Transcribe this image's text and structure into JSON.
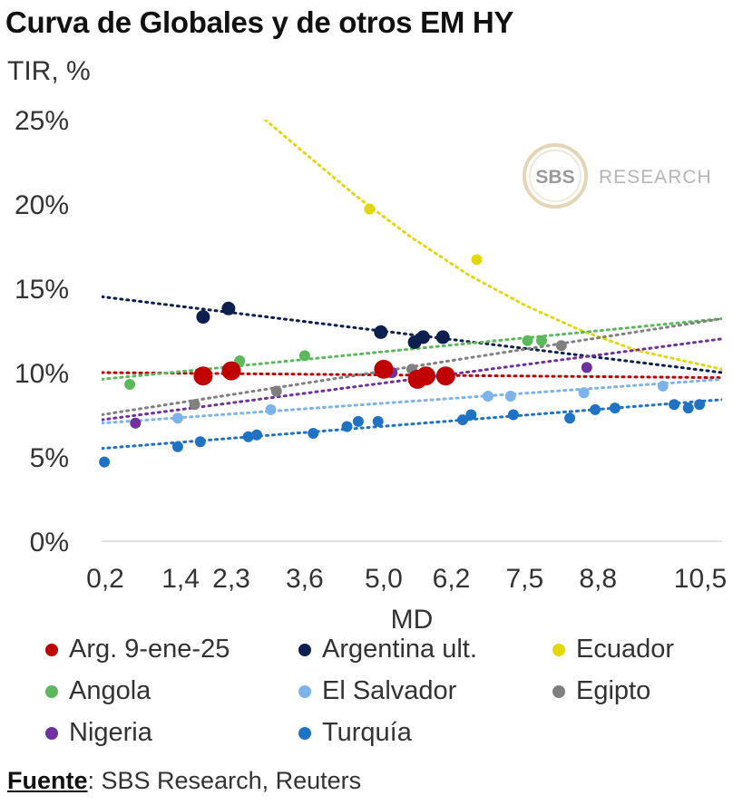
{
  "header": {
    "title": "Curva de Globales y de otros EM HY",
    "ylabel": "TIR, %"
  },
  "watermark": {
    "badge_text": "SBS",
    "text": "RESEARCH"
  },
  "source": {
    "label": "Fuente",
    "text": ": SBS Research, Reuters"
  },
  "chart_data": {
    "type": "scatter",
    "title": "Curva de Globales y de otros EM HY",
    "ylabel": "TIR, %",
    "xlabel": "MD",
    "x_tick_labels": [
      "0,2",
      "1,4",
      "2,3",
      "3,6",
      "5,0",
      "6,2",
      "7,5",
      "8,8",
      "10,5"
    ],
    "x_tick_values": [
      0.2,
      1.4,
      2.3,
      3.6,
      5.0,
      6.2,
      7.5,
      8.8,
      10.5
    ],
    "y_tick_labels": [
      "0%",
      "5%",
      "10%",
      "15%",
      "20%",
      "25%"
    ],
    "y_tick_values": [
      0,
      5,
      10,
      15,
      20,
      25
    ],
    "xlim": [
      0.0,
      11.0
    ],
    "ylim": [
      0,
      25
    ],
    "grid": false,
    "legend_position": "bottom",
    "series": [
      {
        "name": "Arg. 9-ene-25",
        "color": "#c00000",
        "marker": "large",
        "points": [
          [
            1.8,
            9.8
          ],
          [
            2.3,
            10.1
          ],
          [
            5.0,
            10.2
          ],
          [
            5.6,
            9.6
          ],
          [
            5.75,
            9.8
          ],
          [
            6.1,
            9.8
          ]
        ],
        "trend": {
          "type": "linear",
          "x": [
            0.0,
            11.0
          ],
          "y": [
            10.0,
            9.7
          ]
        }
      },
      {
        "name": "Argentina ult.",
        "color": "#0d1f4f",
        "marker": "medium",
        "points": [
          [
            1.8,
            13.3
          ],
          [
            2.25,
            13.8
          ],
          [
            4.95,
            12.4
          ],
          [
            5.55,
            11.8
          ],
          [
            5.7,
            12.1
          ],
          [
            6.05,
            12.1
          ]
        ],
        "trend": {
          "type": "linear",
          "x": [
            0.0,
            11.0
          ],
          "y": [
            14.5,
            10.0
          ]
        }
      },
      {
        "name": "Ecuador",
        "color": "#e3d70a",
        "marker": "small",
        "points": [
          [
            4.75,
            19.7
          ],
          [
            6.65,
            16.7
          ]
        ],
        "trend": {
          "type": "power",
          "x": [
            2.9,
            3.5,
            4.5,
            5.5,
            6.5,
            7.5,
            8.5,
            9.5,
            11.0
          ],
          "y": [
            25.0,
            23.3,
            20.5,
            18.0,
            15.8,
            14.0,
            12.5,
            11.3,
            10.2
          ]
        }
      },
      {
        "name": "Angola",
        "color": "#5cb85c",
        "marker": "small",
        "points": [
          [
            0.5,
            9.3
          ],
          [
            2.45,
            10.7
          ],
          [
            3.6,
            11.0
          ],
          [
            7.55,
            11.9
          ],
          [
            7.8,
            11.9
          ]
        ],
        "trend": {
          "type": "linear",
          "x": [
            0.0,
            11.0
          ],
          "y": [
            9.6,
            13.2
          ]
        }
      },
      {
        "name": "El Salvador",
        "color": "#7db3e8",
        "marker": "small",
        "points": [
          [
            1.35,
            7.3
          ],
          [
            3.0,
            7.8
          ],
          [
            6.85,
            8.6
          ],
          [
            7.25,
            8.6
          ],
          [
            8.55,
            8.8
          ],
          [
            9.95,
            9.2
          ]
        ],
        "trend": {
          "type": "linear",
          "x": [
            0.0,
            11.0
          ],
          "y": [
            7.0,
            9.6
          ]
        }
      },
      {
        "name": "Egipto",
        "color": "#808080",
        "marker": "small",
        "points": [
          [
            1.65,
            8.1
          ],
          [
            3.1,
            8.9
          ],
          [
            5.1,
            10.0
          ],
          [
            5.5,
            10.2
          ],
          [
            8.15,
            11.6
          ]
        ],
        "trend": {
          "type": "linear",
          "x": [
            0.0,
            11.0
          ],
          "y": [
            7.5,
            13.2
          ]
        }
      },
      {
        "name": "Nigeria",
        "color": "#7030a0",
        "marker": "small",
        "points": [
          [
            0.6,
            7.0
          ],
          [
            5.15,
            10.0
          ],
          [
            8.6,
            10.3
          ]
        ],
        "trend": {
          "type": "linear",
          "x": [
            0.0,
            11.0
          ],
          "y": [
            7.2,
            12.0
          ]
        }
      },
      {
        "name": "Turquía",
        "color": "#1f72c4",
        "marker": "small",
        "points": [
          [
            0.05,
            4.7
          ],
          [
            1.35,
            5.6
          ],
          [
            1.75,
            5.9
          ],
          [
            2.6,
            6.2
          ],
          [
            2.75,
            6.3
          ],
          [
            3.75,
            6.4
          ],
          [
            4.35,
            6.8
          ],
          [
            4.55,
            7.1
          ],
          [
            4.9,
            7.1
          ],
          [
            6.4,
            7.2
          ],
          [
            6.55,
            7.5
          ],
          [
            7.3,
            7.5
          ],
          [
            8.3,
            7.3
          ],
          [
            8.75,
            7.8
          ],
          [
            9.1,
            7.9
          ],
          [
            10.15,
            8.1
          ],
          [
            10.4,
            7.9
          ],
          [
            10.6,
            8.1
          ]
        ],
        "trend": {
          "type": "linear",
          "x": [
            0.0,
            11.0
          ],
          "y": [
            5.5,
            8.4
          ]
        }
      }
    ]
  }
}
